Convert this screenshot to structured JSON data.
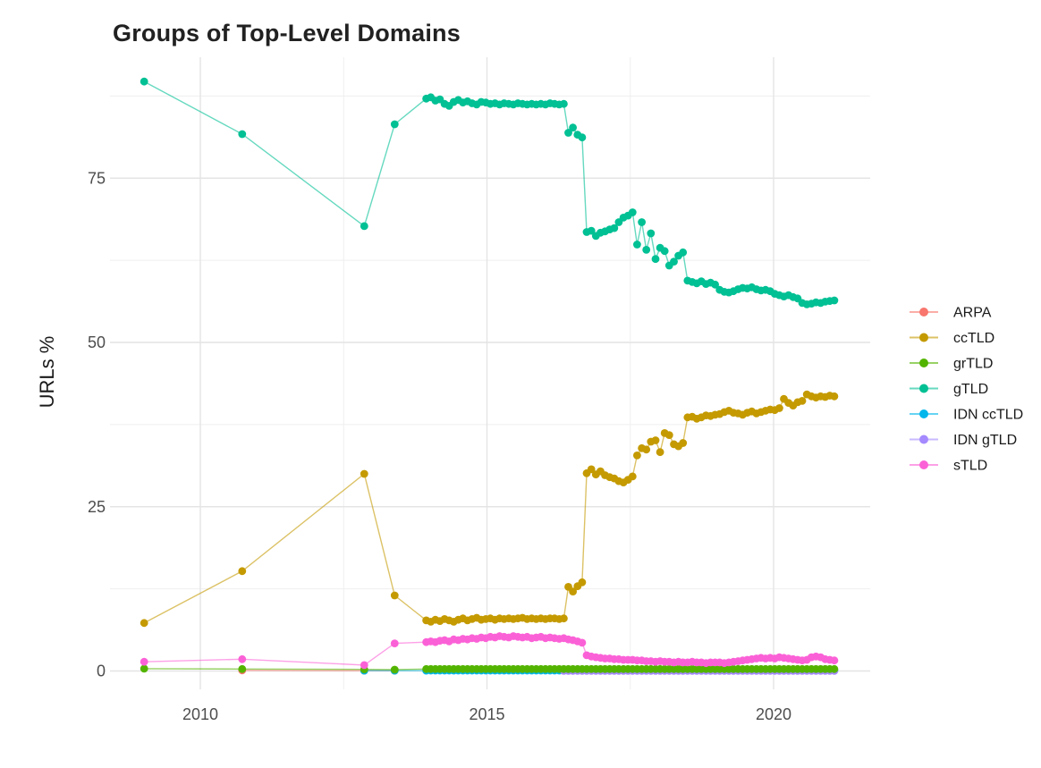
{
  "chart_data": {
    "type": "line",
    "title": "Groups of Top-Level Domains",
    "xlabel": "",
    "ylabel": "URLs %",
    "x_ticks": [
      2010,
      2015,
      2020
    ],
    "x_tick_labels": [
      "2010",
      "2015",
      "2020"
    ],
    "x_minor": [
      2012.5,
      2017.5
    ],
    "y_ticks": [
      0,
      25,
      50,
      75
    ],
    "y_tick_labels": [
      "0",
      "25",
      "50",
      "75"
    ],
    "y_minor": [
      12.5,
      37.5,
      62.5,
      87.5
    ],
    "xlim": [
      2008.45,
      2021.65
    ],
    "ylim": [
      -2.8,
      93.4
    ],
    "grid": true,
    "legend_position": "right",
    "point_radius": 4.4,
    "line_opacity": 0.6,
    "draw_order": [
      "ARPA",
      "IDN ccTLD",
      "IDN gTLD",
      "grTLD",
      "ccTLD",
      "gTLD",
      "sTLD"
    ],
    "series": [
      {
        "name": "ARPA",
        "color": "#F8766D",
        "points": [
          [
            2010.73,
            0.1
          ],
          [
            2012.86,
            0.05
          ],
          [
            2013.39,
            0.05
          ]
        ]
      },
      {
        "name": "ccTLD",
        "color": "#C49A00",
        "points": [
          [
            2009.02,
            7.3
          ],
          [
            2010.73,
            15.2
          ],
          [
            2012.86,
            30.0
          ],
          [
            2013.39,
            11.5
          ],
          [
            2013.94,
            7.7
          ]
        ],
        "dense": {
          "x0": 2014.02,
          "dx": 0.08,
          "values": [
            7.5,
            7.8,
            7.6,
            7.9,
            7.7,
            7.5,
            7.8,
            8.0,
            7.7,
            7.9,
            8.1,
            7.8,
            7.9,
            8.0,
            7.8,
            8.0,
            7.9,
            8.0,
            7.9,
            8.0,
            8.1,
            7.9,
            8.0,
            7.9,
            8.0,
            7.9,
            8.0,
            8.0,
            7.9,
            8.0,
            12.8,
            12.1,
            12.9,
            13.5,
            30.1,
            30.7,
            29.9,
            30.4,
            29.8,
            29.5,
            29.3,
            28.9,
            28.7,
            29.1,
            29.6,
            32.8,
            33.9,
            33.7,
            34.9,
            35.1,
            33.3,
            36.2,
            35.9,
            34.5,
            34.2,
            34.7,
            38.6,
            38.7,
            38.4,
            38.6,
            38.9,
            38.8,
            39.0,
            39.1,
            39.4,
            39.6,
            39.3,
            39.2,
            39.0,
            39.3,
            39.5,
            39.2,
            39.4,
            39.6,
            39.8,
            39.7,
            40.0,
            41.4,
            40.8,
            40.4,
            40.9,
            41.1,
            42.1,
            41.8,
            41.6,
            41.8,
            41.7,
            41.9,
            41.8
          ]
        }
      },
      {
        "name": "grTLD",
        "color": "#53B400",
        "points": [
          [
            2009.02,
            0.35
          ],
          [
            2010.73,
            0.3
          ],
          [
            2012.86,
            0.25
          ],
          [
            2013.39,
            0.2
          ],
          [
            2013.94,
            0.3
          ]
        ],
        "fill": {
          "x0": 2014.02,
          "dx": 0.08,
          "n": 89,
          "value": 0.3
        }
      },
      {
        "name": "gTLD",
        "color": "#00C094",
        "points": [
          [
            2009.02,
            89.7
          ],
          [
            2010.73,
            81.7
          ],
          [
            2012.86,
            67.7
          ],
          [
            2013.39,
            83.2
          ],
          [
            2013.94,
            87.1
          ]
        ],
        "dense": {
          "x0": 2014.02,
          "dx": 0.08,
          "values": [
            87.3,
            86.8,
            87.0,
            86.3,
            86.0,
            86.6,
            86.9,
            86.5,
            86.7,
            86.4,
            86.2,
            86.6,
            86.5,
            86.3,
            86.4,
            86.2,
            86.4,
            86.3,
            86.2,
            86.4,
            86.3,
            86.2,
            86.3,
            86.2,
            86.3,
            86.2,
            86.4,
            86.3,
            86.2,
            86.3,
            81.9,
            82.7,
            81.6,
            81.2,
            66.8,
            67.0,
            66.2,
            66.7,
            66.9,
            67.2,
            67.4,
            68.3,
            69.0,
            69.3,
            69.8,
            64.9,
            68.3,
            64.1,
            66.6,
            62.7,
            64.4,
            63.9,
            61.7,
            62.3,
            63.2,
            63.7,
            59.4,
            59.2,
            59.0,
            59.3,
            58.9,
            59.1,
            58.8,
            58.0,
            57.7,
            57.6,
            57.8,
            58.1,
            58.3,
            58.2,
            58.4,
            58.1,
            57.9,
            58.0,
            57.8,
            57.4,
            57.2,
            57.0,
            57.2,
            56.9,
            56.7,
            56.0,
            55.8,
            55.9,
            56.1,
            56.0,
            56.2,
            56.3,
            56.4
          ]
        }
      },
      {
        "name": "IDN ccTLD",
        "color": "#00B6EB",
        "points": [
          [
            2012.86,
            0.05
          ],
          [
            2013.39,
            0.05
          ],
          [
            2013.94,
            0.05
          ]
        ],
        "fill": {
          "x0": 2014.02,
          "dx": 0.08,
          "n": 89,
          "value": 0.07
        }
      },
      {
        "name": "IDN gTLD",
        "color": "#A58AFF",
        "points": [],
        "fill": {
          "x0": 2016.34,
          "dx": 0.08,
          "n": 60,
          "value": 0.02
        }
      },
      {
        "name": "sTLD",
        "color": "#FB61D7",
        "points": [
          [
            2009.02,
            1.4
          ],
          [
            2010.73,
            1.8
          ],
          [
            2012.86,
            0.9
          ],
          [
            2013.39,
            4.2
          ],
          [
            2013.94,
            4.4
          ]
        ],
        "dense": {
          "x0": 2014.02,
          "dx": 0.08,
          "values": [
            4.5,
            4.4,
            4.6,
            4.7,
            4.5,
            4.8,
            4.7,
            4.9,
            4.8,
            5.0,
            4.9,
            5.1,
            5.0,
            5.2,
            5.1,
            5.3,
            5.2,
            5.1,
            5.3,
            5.2,
            5.1,
            5.2,
            5.0,
            5.1,
            5.2,
            5.0,
            5.1,
            5.0,
            4.9,
            5.0,
            4.8,
            4.7,
            4.5,
            4.3,
            2.4,
            2.2,
            2.1,
            2.0,
            1.9,
            1.9,
            1.8,
            1.8,
            1.7,
            1.7,
            1.7,
            1.6,
            1.6,
            1.5,
            1.5,
            1.4,
            1.5,
            1.4,
            1.4,
            1.3,
            1.4,
            1.3,
            1.3,
            1.4,
            1.3,
            1.3,
            1.2,
            1.3,
            1.3,
            1.3,
            1.2,
            1.3,
            1.4,
            1.5,
            1.6,
            1.7,
            1.8,
            1.9,
            2.0,
            1.9,
            2.0,
            1.9,
            2.1,
            2.0,
            1.9,
            1.8,
            1.7,
            1.6,
            1.7,
            2.1,
            2.2,
            2.1,
            1.8,
            1.7,
            1.6
          ]
        }
      }
    ]
  }
}
